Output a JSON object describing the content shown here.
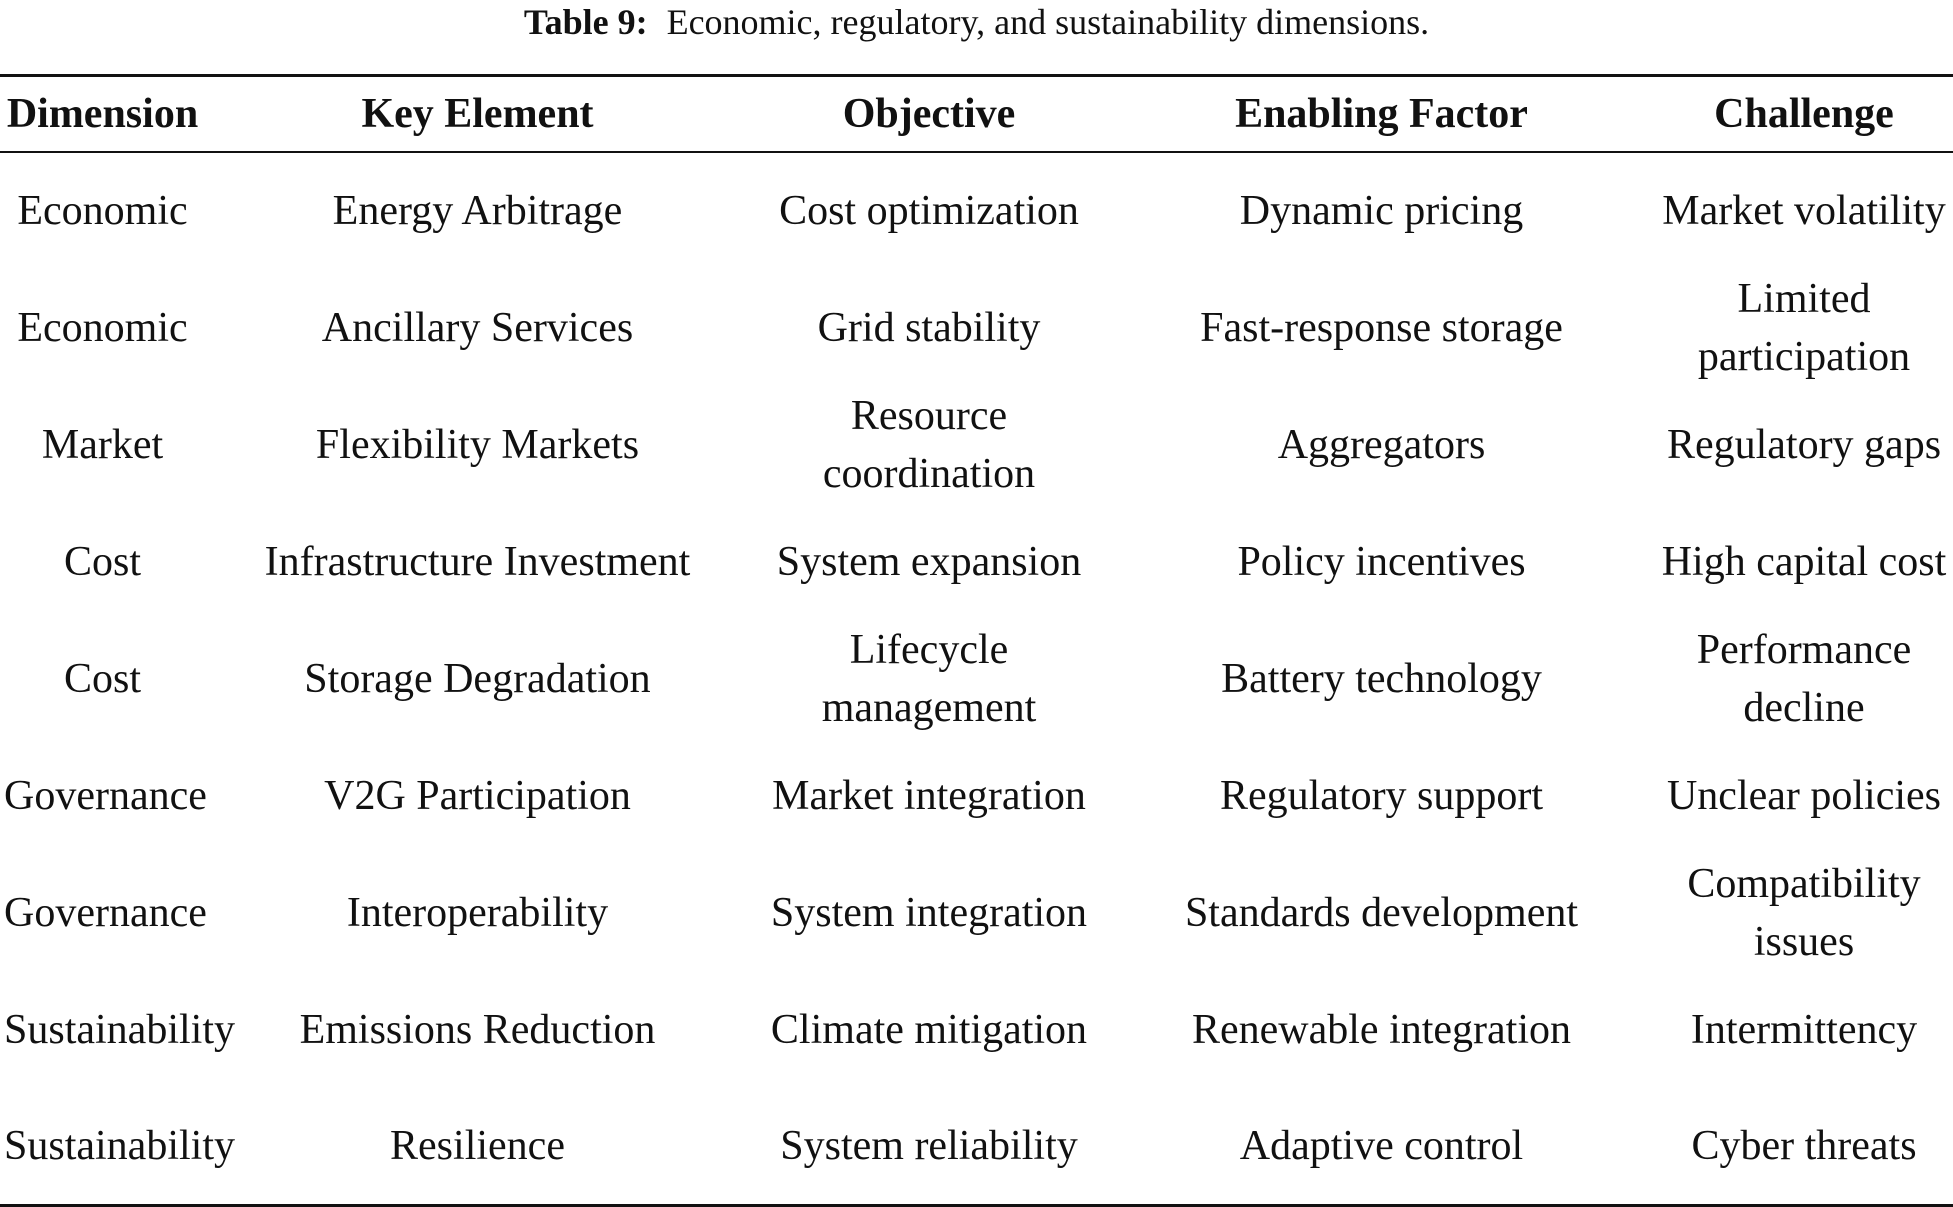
{
  "caption": {
    "label": "Table 9:",
    "text": "Economic, regulatory, and sustainability dimensions."
  },
  "headers": [
    "Dimension",
    "Key Element",
    "Objective",
    "Enabling Factor",
    "Challenge"
  ],
  "rows": [
    [
      "Economic",
      "Energy Arbitrage",
      "Cost optimization",
      "Dynamic pricing",
      "Market volatility"
    ],
    [
      "Economic",
      "Ancillary Services",
      "Grid stability",
      "Fast-response storage",
      "Limited participation"
    ],
    [
      "Market",
      "Flexibility Markets",
      "Resource coordination",
      "Aggregators",
      "Regulatory gaps"
    ],
    [
      "Cost",
      "Infrastructure Investment",
      "System expansion",
      "Policy incentives",
      "High capital cost"
    ],
    [
      "Cost",
      "Storage Degradation",
      "Lifecycle management",
      "Battery technology",
      "Performance decline"
    ],
    [
      "Governance",
      "V2G Participation",
      "Market integration",
      "Regulatory support",
      "Unclear policies"
    ],
    [
      "Governance",
      "Interoperability",
      "System integration",
      "Standards development",
      "Compatibility issues"
    ],
    [
      "Sustainability",
      "Emissions Reduction",
      "Climate mitigation",
      "Renewable integration",
      "Intermittency"
    ],
    [
      "Sustainability",
      "Resilience",
      "System reliability",
      "Adaptive control",
      "Cyber threats"
    ]
  ]
}
